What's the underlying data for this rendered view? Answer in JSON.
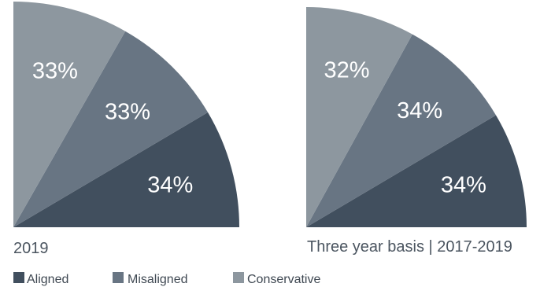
{
  "chart_data": [
    {
      "type": "pie",
      "title": "2019",
      "categories": [
        "Aligned",
        "Misaligned",
        "Conservative"
      ],
      "values": [
        34,
        33,
        33
      ],
      "labels": [
        "34%",
        "33%",
        "33%"
      ],
      "colors": [
        "#414f5e",
        "#687583",
        "#8d979f"
      ],
      "shape": "quarter-circle"
    },
    {
      "type": "pie",
      "title": "Three year basis | 2017-2019",
      "categories": [
        "Aligned",
        "Misaligned",
        "Conservative"
      ],
      "values": [
        34,
        34,
        32
      ],
      "labels": [
        "34%",
        "34%",
        "32%"
      ],
      "colors": [
        "#414f5e",
        "#687583",
        "#8d979f"
      ],
      "shape": "quarter-circle"
    }
  ],
  "legend": {
    "placement": "bottom-left",
    "items": [
      {
        "label": "Aligned",
        "color": "#414f5e"
      },
      {
        "label": "Misaligned",
        "color": "#687583"
      },
      {
        "label": "Conservative",
        "color": "#8d979f"
      }
    ]
  }
}
